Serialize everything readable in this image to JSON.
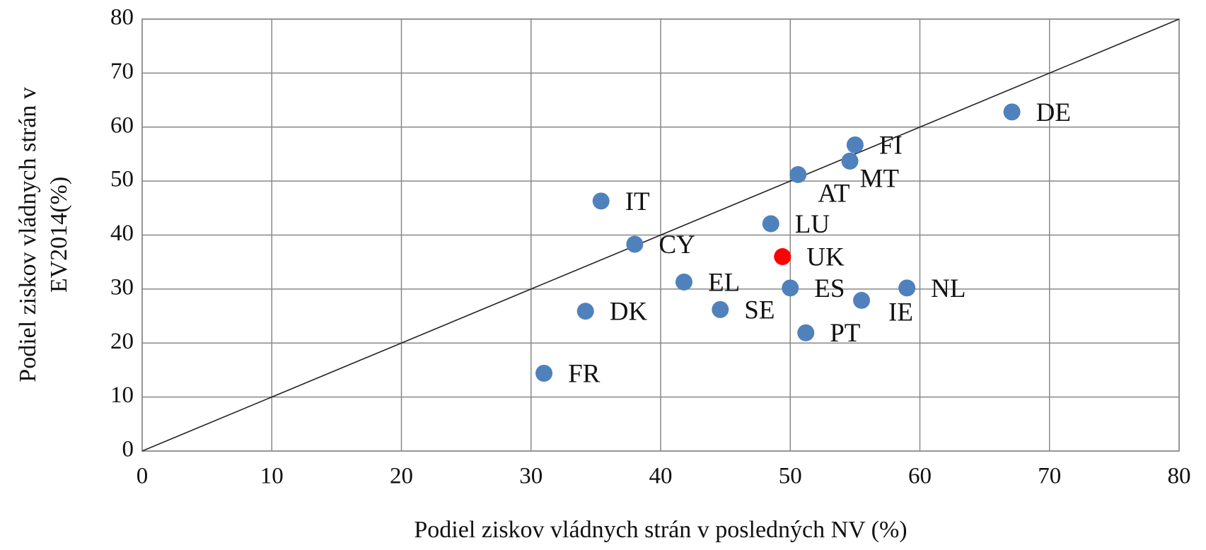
{
  "chart_data": {
    "type": "scatter",
    "xlabel": "Podiel ziskov vládnych strán v posledných NV (%)",
    "ylabel": [
      "Podiel ziskov vládnych strán v",
      "EV2014(%)"
    ],
    "labels": [
      "DE",
      "FI",
      "MT",
      "AT",
      "IT",
      "LU",
      "CY",
      "UK",
      "EL",
      "ES",
      "NL",
      "IE",
      "DK",
      "SE",
      "PT",
      "FR"
    ],
    "x": [
      67.1,
      55.0,
      54.6,
      50.6,
      35.4,
      48.5,
      38.0,
      49.4,
      41.8,
      50.0,
      59.0,
      55.5,
      34.2,
      44.6,
      51.2,
      31.0
    ],
    "values": [
      62.8,
      56.7,
      53.7,
      51.2,
      46.3,
      42.1,
      38.3,
      36.0,
      31.3,
      30.2,
      30.2,
      27.9,
      25.9,
      26.2,
      21.9,
      14.4
    ],
    "colors": [
      "#4f81bd",
      "#4f81bd",
      "#4f81bd",
      "#4f81bd",
      "#4f81bd",
      "#4f81bd",
      "#4f81bd",
      "#ff0000",
      "#4f81bd",
      "#4f81bd",
      "#4f81bd",
      "#4f81bd",
      "#4f81bd",
      "#4f81bd",
      "#4f81bd",
      "#4f81bd"
    ],
    "xlim": [
      0,
      80
    ],
    "ylim": [
      0,
      80
    ],
    "xticks": [
      0,
      10,
      20,
      30,
      40,
      50,
      60,
      70,
      80
    ],
    "yticks": [
      0,
      10,
      20,
      30,
      40,
      50,
      60,
      70,
      80
    ],
    "grid": true
  }
}
